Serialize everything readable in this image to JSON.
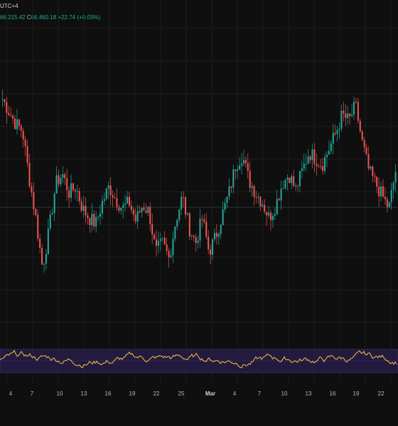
{
  "header": {
    "timezone": "UTC+4",
    "ohlc_low_fragment": "66,215.42",
    "close_label": "C",
    "close_value": "66,460.18",
    "change": "+22.74 (+0.03%)"
  },
  "chart_data": {
    "type": "candlestick",
    "x_tick_labels": [
      "4",
      "7",
      "10",
      "13",
      "16",
      "19",
      "22",
      "25",
      "Mar",
      "4",
      "7",
      "10",
      "13",
      "16",
      "19",
      "22"
    ],
    "price_series_close_approx": [
      70600,
      70200,
      69800,
      69600,
      68100,
      66800,
      65200,
      66400,
      67900,
      68200,
      67600,
      67800,
      67100,
      66800,
      66600,
      67300,
      67800,
      67400,
      67100,
      67300,
      66700,
      67200,
      67000,
      65700,
      66000,
      65500,
      66700,
      67500,
      66500,
      66000,
      66800,
      65700,
      66200,
      66900,
      67600,
      68500,
      68800,
      68000,
      67600,
      67300,
      66800,
      67200,
      67900,
      68200,
      67700,
      68300,
      68900,
      68700,
      68500,
      69000,
      69500,
      70100,
      69900,
      70400,
      69200,
      68300,
      67900,
      67500,
      67100,
      68300
    ],
    "oscillator": {
      "upper_band": 70,
      "lower_band": 30,
      "midline": 50
    },
    "colors": {
      "up": "#26a69a",
      "down": "#ef5350",
      "oscillator_line": "#f5c542",
      "band_fill": "#2a1f4a"
    }
  },
  "colors": {
    "background": "#0f0f0f",
    "grid": "#1e1e1e",
    "text": "#b2b5be",
    "accent_green": "#22ab94"
  }
}
